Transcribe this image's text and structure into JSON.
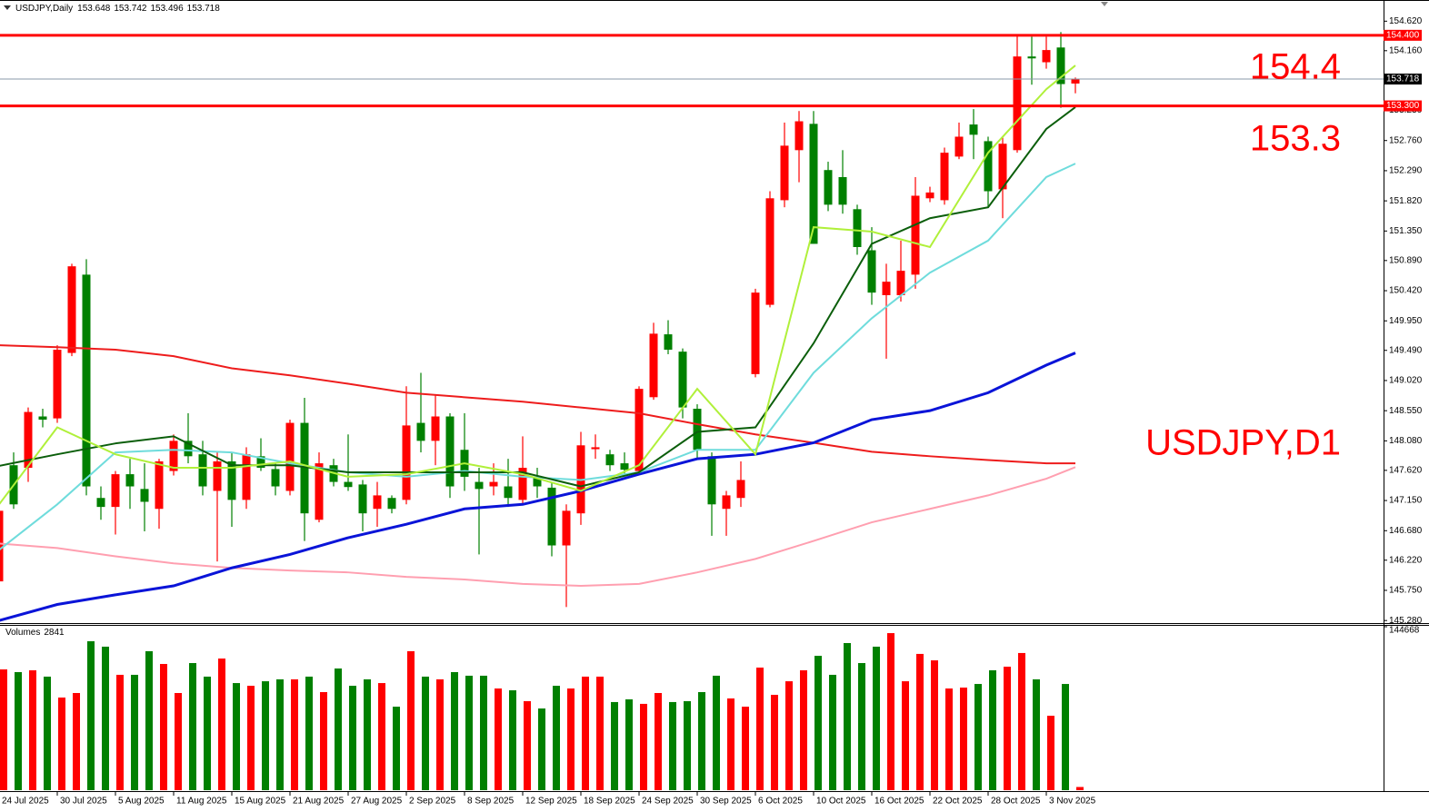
{
  "chart_data": [
    {
      "type": "candlestick",
      "title": "USDJPY,Daily",
      "categories": [
        "24 Jul 2025",
        null,
        null,
        null,
        "30 Jul 2025",
        null,
        null,
        null,
        "5 Aug 2025",
        null,
        null,
        null,
        "11 Aug 2025",
        null,
        null,
        null,
        "15 Aug 2025",
        null,
        null,
        null,
        "21 Aug 2025",
        null,
        null,
        null,
        "27 Aug 2025",
        null,
        null,
        null,
        "2 Sep 2025",
        null,
        null,
        null,
        "8 Sep 2025",
        null,
        null,
        null,
        "12 Sep 2025",
        null,
        null,
        null,
        "18 Sep 2025",
        null,
        null,
        null,
        "24 Sep 2025",
        null,
        null,
        null,
        "30 Sep 2025",
        null,
        null,
        null,
        "6 Oct 2025",
        null,
        null,
        null,
        "10 Oct 2025",
        null,
        null,
        null,
        "16 Oct 2025",
        null,
        null,
        null,
        "22 Oct 2025",
        null,
        null,
        null,
        "28 Oct 2025",
        null,
        null,
        null,
        "3 Nov 2025",
        null,
        null
      ],
      "open": [
        145.89,
        147.7,
        147.66,
        148.46,
        148.43,
        149.45,
        150.67,
        147.19,
        147.05,
        147.56,
        147.33,
        147.02,
        147.61,
        148.08,
        147.87,
        147.3,
        147.76,
        147.16,
        147.84,
        147.64,
        147.3,
        148.36,
        146.85,
        147.7,
        147.44,
        147.4,
        147.02,
        147.19,
        147.16,
        148.36,
        148.08,
        148.46,
        147.94,
        147.44,
        147.37,
        147.37,
        147.16,
        147.52,
        147.35,
        146.45,
        146.95,
        147.95,
        147.87,
        147.73,
        147.61,
        148.76,
        149.74,
        149.47,
        148.58,
        147.84,
        147.02,
        147.19,
        149.12,
        150.2,
        151.83,
        152.61,
        153.02,
        152.3,
        152.19,
        151.69,
        151.05,
        150.35,
        150.35,
        150.67,
        151.86,
        151.83,
        152.51,
        153.01,
        152.75,
        152.0,
        152.61,
        154.07,
        153.98,
        154.21,
        153.648
      ],
      "high": [
        147.09,
        147.9,
        148.6,
        148.58,
        149.57,
        150.84,
        150.91,
        147.37,
        147.61,
        147.8,
        147.73,
        147.8,
        148.18,
        148.51,
        148.08,
        147.9,
        147.9,
        147.98,
        148.12,
        147.73,
        148.41,
        148.75,
        147.9,
        147.8,
        148.18,
        147.47,
        147.44,
        147.23,
        148.93,
        149.14,
        148.79,
        148.51,
        148.51,
        147.66,
        147.73,
        147.8,
        148.15,
        147.66,
        147.44,
        147.09,
        148.22,
        148.18,
        147.94,
        147.9,
        148.93,
        149.92,
        149.96,
        149.52,
        148.65,
        147.9,
        147.3,
        147.76,
        150.45,
        151.97,
        153.04,
        153.22,
        153.22,
        152.43,
        152.61,
        151.76,
        151.41,
        150.84,
        151.2,
        152.19,
        152.04,
        152.65,
        153.04,
        153.25,
        152.82,
        152.82,
        154.41,
        154.38,
        154.38,
        154.45,
        153.742
      ],
      "low": [
        145.86,
        147.02,
        147.44,
        148.29,
        148.36,
        149.4,
        147.23,
        146.85,
        146.62,
        147.02,
        146.67,
        146.71,
        147.54,
        147.73,
        147.23,
        146.2,
        146.74,
        147.02,
        147.61,
        147.23,
        147.23,
        146.52,
        146.81,
        147.37,
        147.3,
        146.67,
        146.74,
        146.95,
        147.09,
        147.9,
        147.7,
        147.19,
        147.3,
        146.31,
        147.23,
        147.05,
        147.09,
        147.19,
        146.28,
        145.49,
        146.77,
        147.8,
        147.61,
        147.56,
        147.56,
        148.72,
        149.43,
        148.43,
        147.8,
        146.6,
        146.6,
        147.05,
        149.07,
        150.16,
        151.72,
        152.11,
        151.15,
        151.66,
        151.62,
        150.98,
        150.2,
        149.36,
        150.25,
        150.45,
        151.8,
        151.76,
        152.47,
        152.47,
        151.72,
        151.55,
        152.57,
        153.63,
        153.88,
        153.27,
        153.496
      ],
      "close": [
        146.99,
        147.09,
        148.53,
        148.41,
        149.5,
        150.8,
        147.37,
        147.05,
        147.56,
        147.37,
        147.13,
        147.76,
        148.08,
        147.84,
        147.37,
        147.76,
        147.16,
        147.87,
        147.66,
        147.37,
        148.36,
        146.95,
        147.73,
        147.44,
        147.36,
        146.95,
        147.23,
        147.02,
        148.32,
        148.08,
        148.46,
        147.37,
        147.52,
        147.33,
        147.44,
        147.19,
        147.66,
        147.37,
        146.45,
        146.99,
        148.01,
        147.98,
        147.7,
        147.63,
        148.89,
        149.75,
        149.5,
        148.6,
        147.94,
        147.09,
        147.23,
        147.47,
        150.39,
        151.86,
        152.68,
        153.06,
        151.15,
        151.76,
        151.76,
        151.1,
        150.39,
        150.56,
        150.73,
        151.9,
        151.95,
        152.57,
        152.82,
        152.85,
        151.97,
        152.71,
        154.07,
        154.04,
        154.17,
        153.64,
        153.718
      ],
      "up_color": "#ff0000",
      "down_color": "#008000",
      "ylim": [
        145.24,
        154.95
      ],
      "yticks": [
        {
          "value": 154.62,
          "label": "154.620"
        },
        {
          "value": 154.16,
          "label": "154.160"
        },
        {
          "value": 153.69,
          "label": "153.690"
        },
        {
          "value": 153.23,
          "label": "153.230"
        },
        {
          "value": 152.76,
          "label": "152.760"
        },
        {
          "value": 152.29,
          "label": "152.290"
        },
        {
          "value": 151.82,
          "label": "151.820"
        },
        {
          "value": 151.35,
          "label": "151.350"
        },
        {
          "value": 150.89,
          "label": "150.890"
        },
        {
          "value": 150.42,
          "label": "150.420"
        },
        {
          "value": 149.95,
          "label": "149.950"
        },
        {
          "value": 149.49,
          "label": "149.490"
        },
        {
          "value": 149.02,
          "label": "149.020"
        },
        {
          "value": 148.55,
          "label": "148.550"
        },
        {
          "value": 148.08,
          "label": "148.080"
        },
        {
          "value": 147.62,
          "label": "147.620"
        },
        {
          "value": 147.15,
          "label": "147.150"
        },
        {
          "value": 146.68,
          "label": "146.680"
        },
        {
          "value": 146.22,
          "label": "146.220"
        },
        {
          "value": 145.75,
          "label": "145.750"
        },
        {
          "value": 145.28,
          "label": "145.280"
        }
      ],
      "moving_averages": [
        {
          "color": "#ff9fb0",
          "x": [
            0,
            4,
            8,
            12,
            16,
            20,
            24,
            28,
            32,
            36,
            40,
            44,
            48,
            52,
            56,
            60,
            64,
            68,
            72,
            74
          ],
          "values": [
            146.48,
            146.41,
            146.28,
            146.17,
            146.1,
            146.06,
            146.03,
            145.96,
            145.92,
            145.85,
            145.82,
            145.85,
            146.03,
            146.24,
            146.52,
            146.81,
            147.02,
            147.23,
            147.49,
            147.67
          ]
        },
        {
          "color": "#ee1c1c",
          "x": [
            0,
            4,
            8,
            12,
            16,
            20,
            24,
            28,
            32,
            36,
            40,
            44,
            48,
            52,
            56,
            60,
            64,
            68,
            72,
            74
          ],
          "values": [
            149.57,
            149.54,
            149.5,
            149.4,
            149.21,
            149.1,
            148.97,
            148.83,
            148.76,
            148.69,
            148.6,
            148.51,
            148.34,
            148.18,
            148.05,
            147.91,
            147.84,
            147.78,
            147.73,
            147.73
          ]
        },
        {
          "color": "#0a14d8",
          "x": [
            0,
            4,
            8,
            12,
            16,
            20,
            24,
            28,
            32,
            36,
            40,
            44,
            48,
            52,
            56,
            60,
            64,
            68,
            72,
            74
          ],
          "values": [
            145.28,
            145.53,
            145.68,
            145.82,
            146.1,
            146.31,
            146.57,
            146.78,
            147.02,
            147.09,
            147.3,
            147.56,
            147.8,
            147.87,
            148.05,
            148.41,
            148.55,
            148.83,
            149.26,
            149.45
          ]
        },
        {
          "color": "#6fdcdc",
          "x": [
            0,
            4,
            8,
            12,
            16,
            20,
            24,
            28,
            32,
            36,
            40,
            44,
            48,
            52,
            56,
            60,
            64,
            68,
            72,
            74
          ],
          "values": [
            146.38,
            147.09,
            147.9,
            147.94,
            147.9,
            147.73,
            147.59,
            147.52,
            147.61,
            147.52,
            147.47,
            147.59,
            147.94,
            147.94,
            149.14,
            149.99,
            150.7,
            151.2,
            152.19,
            152.4
          ]
        },
        {
          "color": "#0b5e0b",
          "x": [
            0,
            4,
            8,
            12,
            16,
            20,
            24,
            28,
            32,
            36,
            40,
            44,
            48,
            52,
            56,
            60,
            64,
            68,
            72,
            74
          ],
          "values": [
            147.69,
            147.87,
            148.04,
            148.15,
            147.7,
            147.7,
            147.59,
            147.59,
            147.59,
            147.59,
            147.37,
            147.59,
            148.22,
            148.29,
            149.6,
            151.15,
            151.55,
            151.72,
            152.94,
            153.28
          ]
        },
        {
          "color": "#b0f03a",
          "x": [
            0,
            4,
            8,
            12,
            16,
            20,
            24,
            28,
            32,
            36,
            40,
            44,
            48,
            52,
            56,
            60,
            64,
            68,
            72,
            74
          ],
          "values": [
            147.09,
            148.29,
            147.87,
            147.66,
            147.66,
            147.76,
            147.52,
            147.56,
            147.73,
            147.56,
            147.3,
            147.7,
            148.89,
            147.87,
            151.41,
            151.34,
            151.1,
            152.57,
            153.56,
            153.93
          ]
        }
      ],
      "levels": [
        {
          "value": 154.4,
          "label": "154.400",
          "color": "#ff0000"
        },
        {
          "value": 153.3,
          "label": "153.300",
          "color": "#ff0000"
        }
      ],
      "annotations": [
        "154.4",
        "153.3",
        "USDJPY,D1"
      ],
      "annotation_color": "#ff0000"
    },
    {
      "type": "bar",
      "title": "Volumes",
      "values": [
        106900,
        104500,
        106100,
        100500,
        82000,
        86000,
        131800,
        127000,
        102100,
        102100,
        123000,
        111700,
        86000,
        112500,
        100500,
        116500,
        94800,
        92400,
        96400,
        98100,
        98100,
        100500,
        86800,
        107700,
        92400,
        98100,
        94800,
        73900,
        123000,
        100500,
        98100,
        104500,
        101300,
        101300,
        90000,
        88400,
        78800,
        72300,
        92400,
        90000,
        100500,
        100500,
        78000,
        80400,
        76400,
        86000,
        78000,
        78800,
        86800,
        101300,
        81200,
        73900,
        108500,
        84400,
        96400,
        106100,
        118900,
        102100,
        130200,
        112500,
        127000,
        139000,
        96400,
        120600,
        114900,
        90000,
        90800,
        94000,
        106100,
        109300,
        121400,
        98100,
        65900,
        94000,
        2841
      ],
      "ylim": [
        0,
        144668
      ],
      "yticks": [
        144668
      ]
    }
  ]
}
